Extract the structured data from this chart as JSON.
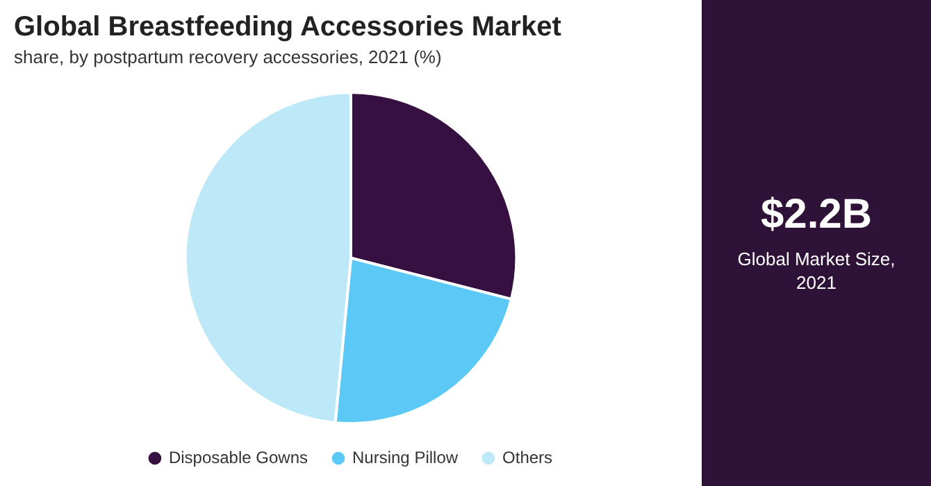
{
  "chart_data": {
    "type": "pie",
    "title": "Global Breastfeeding Accessories Market",
    "subtitle": "share, by postpartum recovery accessories, 2021 (%)",
    "categories": [
      "Disposable Gowns",
      "Nursing Pillow",
      "Others"
    ],
    "values": [
      29,
      22.5,
      48.5
    ],
    "colors": [
      "#361040",
      "#5bc8f5",
      "#bde8f8"
    ],
    "legend": "bottom",
    "annotations": [
      "$2.2B",
      "Global Market Size, 2021"
    ]
  }
}
